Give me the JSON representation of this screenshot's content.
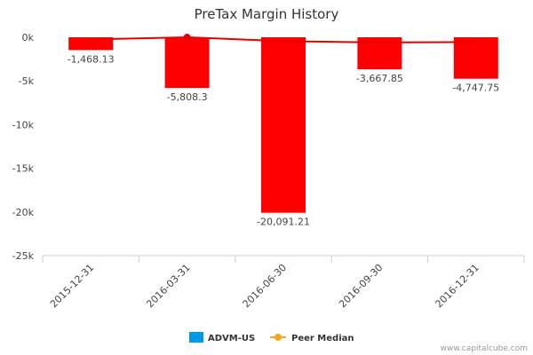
{
  "chart_data": {
    "type": "bar",
    "title": "PreTax Margin History",
    "categories": [
      "2015-12-31",
      "2016-03-31",
      "2016-06-30",
      "2016-09-30",
      "2016-12-31"
    ],
    "series": [
      {
        "name": "ADVM-US",
        "type": "bar",
        "values": [
          -1468.13,
          -5808.3,
          -20091.21,
          -3667.85,
          -4747.75
        ],
        "data_labels": [
          "-1,468.13",
          "-5,808.3",
          "-20,091.21",
          "-3,667.85",
          "-4,747.75"
        ],
        "color": "#ff0000",
        "legend_color": "#0099e6"
      },
      {
        "name": "Peer Median",
        "type": "line",
        "values": [
          -250,
          0,
          -450,
          -600,
          -550
        ],
        "color": "#e60000",
        "legend_color": "#f5a623"
      }
    ],
    "ylim": [
      -25000,
      0
    ],
    "y_ticks": [
      0,
      -5000,
      -10000,
      -15000,
      -20000,
      -25000
    ],
    "y_tick_labels": [
      "0k",
      "-5k",
      "-10k",
      "-15k",
      "-20k",
      "-25k"
    ],
    "grid": false,
    "legend_position": "bottom-center"
  },
  "credit": "www.capitalcube.com"
}
